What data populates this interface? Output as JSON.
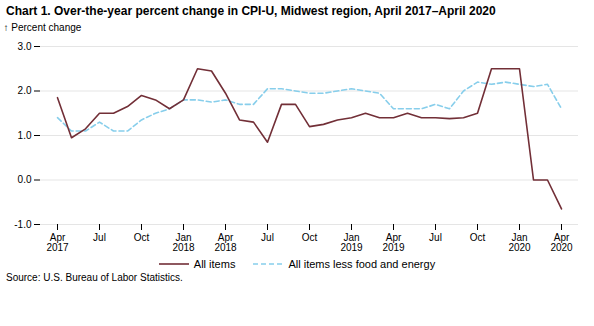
{
  "chart_data": {
    "type": "line",
    "title": "Chart 1. Over-the-year percent change in CPI-U, Midwest region, April 2017–April 2020",
    "ylabel": "Percent change",
    "source": "Source: U.S. Bureau of Labor Statistics.",
    "categories": [
      "Apr\n2017",
      null,
      null,
      "Jul",
      null,
      null,
      "Oct",
      null,
      null,
      "Jan\n2018",
      null,
      null,
      "Apr\n2018",
      null,
      null,
      "Jul",
      null,
      null,
      "Oct",
      null,
      null,
      "Jan\n2019",
      null,
      null,
      "Apr\n2019",
      null,
      null,
      "Jul",
      null,
      null,
      "Oct",
      null,
      null,
      "Jan\n2020",
      null,
      null,
      "Apr\n2020"
    ],
    "series": [
      {
        "name": "All items",
        "color": "#722F37",
        "line_style": "solid",
        "values": [
          1.85,
          0.95,
          1.15,
          1.5,
          1.5,
          1.65,
          1.9,
          1.8,
          1.6,
          1.8,
          2.5,
          2.45,
          1.95,
          1.35,
          1.3,
          0.85,
          1.7,
          1.7,
          1.2,
          1.25,
          1.35,
          1.4,
          1.5,
          1.4,
          1.4,
          1.5,
          1.4,
          1.4,
          1.38,
          1.4,
          1.5,
          2.5,
          2.5,
          2.5,
          0.0,
          0.0,
          -0.65
        ]
      },
      {
        "name": "All items less food and energy",
        "color": "#87CEEB",
        "line_style": "dashed",
        "values": [
          1.4,
          1.1,
          1.1,
          1.3,
          1.1,
          1.1,
          1.35,
          1.5,
          1.6,
          1.8,
          1.8,
          1.75,
          1.8,
          1.7,
          1.7,
          2.05,
          2.05,
          2.0,
          1.95,
          1.95,
          2.0,
          2.05,
          2.0,
          1.95,
          1.6,
          1.6,
          1.6,
          1.7,
          1.6,
          2.0,
          2.2,
          2.15,
          2.2,
          2.15,
          2.1,
          2.15,
          1.6
        ]
      }
    ],
    "ylim": [
      -1.0,
      3.0
    ],
    "yticks": [
      {
        "value": -1.0,
        "label": "-1.0"
      },
      {
        "value": 0.0,
        "label": "0.0"
      },
      {
        "value": 1.0,
        "label": "1.0"
      },
      {
        "value": 2.0,
        "label": "2.0"
      },
      {
        "value": 3.0,
        "label": "3.0"
      }
    ],
    "grid": true,
    "legend": "bottom"
  }
}
